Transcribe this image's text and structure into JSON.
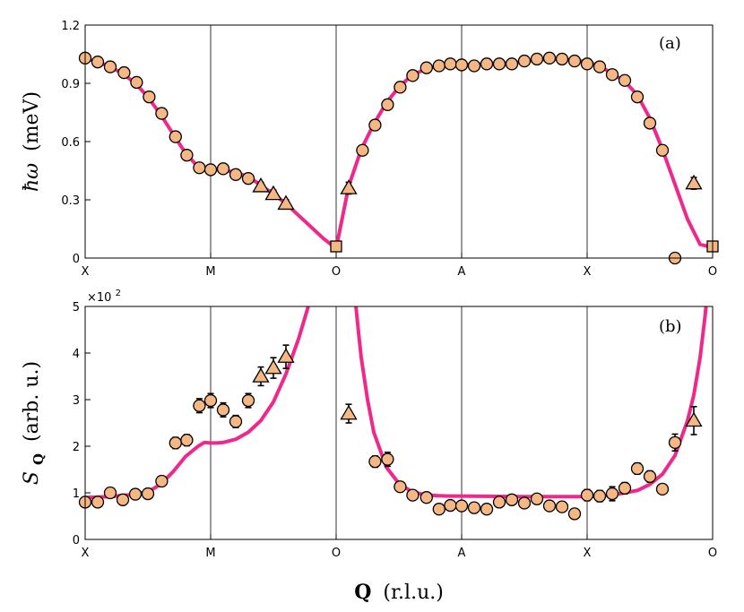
{
  "figure": {
    "xlabel_bold": "Q",
    "xlabel_rest": "(r.l.u.)",
    "x_ticks": [
      "X",
      "M",
      "O",
      "A",
      "X",
      "O"
    ]
  },
  "chart_data": [
    {
      "type": "scatter",
      "panel_tag": "(a)",
      "ylabel_main": "ħω",
      "ylabel_unit": "(meV)",
      "ylim": [
        0,
        1.2
      ],
      "yticks": [
        0,
        0.3,
        0.6,
        0.9,
        1.2
      ],
      "ytick_labels": [
        "0",
        "0.3",
        "0.6",
        "0.9",
        "1.2"
      ],
      "xlim": [
        0,
        5
      ],
      "x_ticks": [
        "X",
        "M",
        "O",
        "A",
        "X",
        "O"
      ],
      "grid": "vertical lines at high-symmetry points",
      "colors": {
        "marker_fill": "#F5B884",
        "marker_edge": "#000000",
        "curve": "#F0288C"
      },
      "series": [
        {
          "marker": "circle",
          "x": [
            0.0,
            0.1,
            0.2,
            0.31,
            0.41,
            0.51,
            0.61,
            0.72,
            0.81,
            0.91,
            1.0,
            1.1,
            1.2,
            1.3,
            2.21,
            2.31,
            2.41,
            2.51,
            2.61,
            2.72,
            2.82,
            2.91,
            3.0,
            3.1,
            3.2,
            3.3,
            3.4,
            3.5,
            3.6,
            3.7,
            3.8,
            3.9,
            4.0,
            4.1,
            4.2,
            4.3,
            4.4,
            4.5,
            4.6,
            4.7
          ],
          "y": [
            1.03,
            1.01,
            0.985,
            0.955,
            0.905,
            0.83,
            0.745,
            0.625,
            0.53,
            0.465,
            0.455,
            0.46,
            0.43,
            0.41,
            0.555,
            0.685,
            0.79,
            0.88,
            0.94,
            0.98,
            0.99,
            1.0,
            0.995,
            0.99,
            1.0,
            1.0,
            1.0,
            1.015,
            1.025,
            1.03,
            1.025,
            1.015,
            1.0,
            0.985,
            0.945,
            0.915,
            0.83,
            0.695,
            0.555,
            0.0
          ],
          "err": [
            0.012,
            0.012,
            0.012,
            0.015,
            0.015,
            0.015,
            0.025,
            0.02,
            0.015,
            0.015,
            0.015,
            0.015,
            0.012,
            0.012,
            0.015,
            0.02,
            0.025,
            0.015,
            0.012,
            0.012,
            0.012,
            0.012,
            0.012,
            0.012,
            0.012,
            0.012,
            0.012,
            0.012,
            0.012,
            0.012,
            0.012,
            0.012,
            0.012,
            0.025,
            0.012,
            0.012,
            0.012,
            0.012,
            0.012,
            0.0
          ]
        },
        {
          "marker": "triangle",
          "x": [
            1.4,
            1.5,
            1.6,
            2.1,
            4.85
          ],
          "y": [
            0.37,
            0.33,
            0.28,
            0.36,
            0.385
          ],
          "err": [
            0.02,
            0.02,
            0.02,
            0.03,
            0.03
          ]
        },
        {
          "marker": "square",
          "x": [
            2.0,
            5.0
          ],
          "y": [
            0.06,
            0.06
          ],
          "err": [
            0.01,
            0.01
          ]
        }
      ],
      "curve": {
        "x": [
          0.0,
          0.1,
          0.2,
          0.3,
          0.4,
          0.5,
          0.6,
          0.7,
          0.8,
          0.9,
          1.0,
          1.1,
          1.2,
          1.3,
          1.4,
          1.5,
          1.6,
          1.7,
          1.8,
          1.9,
          2.0,
          2.1,
          2.2,
          2.3,
          2.4,
          2.5,
          2.6,
          2.7,
          2.8,
          2.9,
          3.0,
          3.2,
          3.4,
          3.6,
          3.7,
          3.8,
          3.9,
          4.0,
          4.1,
          4.2,
          4.3,
          4.4,
          4.5,
          4.6,
          4.7,
          4.8,
          4.9,
          5.0
        ],
        "y": [
          1.03,
          1.01,
          0.985,
          0.95,
          0.9,
          0.83,
          0.74,
          0.64,
          0.54,
          0.47,
          0.455,
          0.455,
          0.44,
          0.42,
          0.375,
          0.33,
          0.28,
          0.22,
          0.16,
          0.1,
          0.05,
          0.37,
          0.56,
          0.69,
          0.8,
          0.88,
          0.94,
          0.97,
          0.99,
          0.995,
          0.995,
          1.0,
          1.005,
          1.02,
          1.025,
          1.025,
          1.02,
          1.01,
          0.99,
          0.95,
          0.91,
          0.84,
          0.72,
          0.56,
          0.38,
          0.2,
          0.07,
          0.055
        ]
      }
    },
    {
      "type": "scatter",
      "panel_tag": "(b)",
      "ylabel_main": "S",
      "ylabel_sub": "Q",
      "ylabel_unit": "(arb. u.)",
      "multiplier_base": "×10",
      "multiplier_exp": "2",
      "ylim": [
        0,
        5
      ],
      "yticks": [
        0,
        1,
        2,
        3,
        4,
        5
      ],
      "ytick_labels": [
        "0",
        "1",
        "2",
        "3",
        "4",
        "5"
      ],
      "xlim": [
        0,
        5
      ],
      "x_ticks": [
        "X",
        "M",
        "O",
        "A",
        "X",
        "O"
      ],
      "series": [
        {
          "marker": "circle",
          "x": [
            0.0,
            0.1,
            0.2,
            0.3,
            0.4,
            0.5,
            0.61,
            0.72,
            0.81,
            0.91,
            1.0,
            1.1,
            1.2,
            1.3,
            2.31,
            2.41,
            2.51,
            2.61,
            2.72,
            2.82,
            2.91,
            3.0,
            3.1,
            3.2,
            3.3,
            3.4,
            3.5,
            3.6,
            3.7,
            3.8,
            3.9,
            4.0,
            4.1,
            4.2,
            4.3,
            4.4,
            4.5,
            4.6,
            4.7
          ],
          "y": [
            0.8,
            0.8,
            1.0,
            0.85,
            0.97,
            0.98,
            1.25,
            2.07,
            2.13,
            2.87,
            2.98,
            2.78,
            2.53,
            2.98,
            1.67,
            1.72,
            1.13,
            0.95,
            0.9,
            0.65,
            0.73,
            0.72,
            0.68,
            0.65,
            0.8,
            0.85,
            0.78,
            0.87,
            0.72,
            0.7,
            0.55,
            0.95,
            0.93,
            0.98,
            1.1,
            1.52,
            1.35,
            1.08,
            2.08
          ],
          "err": [
            0.08,
            0.08,
            0.08,
            0.1,
            0.08,
            0.08,
            0.1,
            0.12,
            0.12,
            0.15,
            0.15,
            0.15,
            0.13,
            0.15,
            0.12,
            0.15,
            0.1,
            0.1,
            0.08,
            0.08,
            0.08,
            0.08,
            0.08,
            0.08,
            0.08,
            0.08,
            0.08,
            0.08,
            0.08,
            0.08,
            0.08,
            0.12,
            0.12,
            0.15,
            0.12,
            0.12,
            0.12,
            0.1,
            0.18
          ]
        },
        {
          "marker": "triangle",
          "x": [
            1.4,
            1.5,
            1.6,
            2.1,
            4.85
          ],
          "y": [
            3.5,
            3.68,
            3.92,
            2.7,
            2.55
          ],
          "err": [
            0.2,
            0.22,
            0.25,
            0.2,
            0.3
          ]
        }
      ],
      "curve_segments": [
        {
          "x": [
            0.0,
            0.2,
            0.4,
            0.5,
            0.6,
            0.7,
            0.8,
            0.9,
            0.95,
            1.0,
            1.05,
            1.1,
            1.2,
            1.3,
            1.4,
            1.5,
            1.6,
            1.7,
            1.75,
            1.8,
            1.85,
            1.88
          ],
          "y": [
            0.9,
            0.92,
            0.97,
            1.02,
            1.18,
            1.45,
            1.78,
            2.0,
            2.08,
            2.07,
            2.07,
            2.08,
            2.15,
            2.3,
            2.55,
            2.95,
            3.55,
            4.3,
            4.75,
            5.2,
            5.7,
            6.0
          ]
        },
        {
          "x": [
            2.12,
            2.15,
            2.18,
            2.2,
            2.25,
            2.3,
            2.4,
            2.5,
            2.6,
            2.7,
            2.8,
            2.9,
            3.0,
            3.5,
            4.0,
            4.2,
            4.4,
            4.5,
            4.6,
            4.7,
            4.8,
            4.85,
            4.9,
            4.94,
            4.97,
            5.0
          ],
          "y": [
            6.0,
            5.2,
            4.4,
            3.9,
            3.0,
            2.3,
            1.55,
            1.2,
            1.03,
            0.96,
            0.94,
            0.93,
            0.93,
            0.92,
            0.92,
            0.95,
            1.05,
            1.18,
            1.4,
            1.8,
            2.55,
            3.1,
            3.9,
            4.8,
            5.6,
            6.2
          ]
        }
      ]
    }
  ]
}
